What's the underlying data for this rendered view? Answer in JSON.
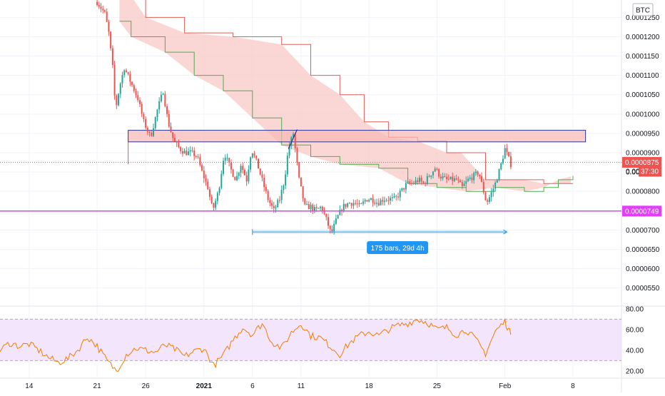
{
  "colors": {
    "up": "#26a69a",
    "down": "#ef5350",
    "cloud": "#f8c9c6",
    "cloud_line_a": "#e15e58",
    "cloud_line_b": "#4caf50",
    "support": "#e040fb",
    "price_line": "#ef5350",
    "rsi_line": "#f57c00",
    "rsi_band": "#f3e5fb",
    "zone_fill": "#f8b8b4",
    "zone_border": "#283593",
    "measure": "#2196f3",
    "grid": "#f0f3fa"
  },
  "currency_badge": "BTC",
  "chart_data": [
    {
      "type": "candlestick",
      "title": "",
      "ylim": [
        5.05e-05,
        0.0001295
      ],
      "y_ticks": [
        "0.0001250",
        "0.0001200",
        "0.0001150",
        "0.0001100",
        "0.0001050",
        "0.0001000",
        "0.0000950",
        "0.0000900",
        "0.0000850",
        "0.0000800",
        "0.0000750",
        "0.0000700",
        "0.0000650",
        "0.0000600",
        "0.0000550"
      ],
      "y_tick_values": [
        0.000125,
        0.00012,
        0.000115,
        0.00011,
        0.000105,
        0.0001,
        9.5e-05,
        9e-05,
        8.5e-05,
        8e-05,
        7.5e-05,
        7e-05,
        6.5e-05,
        6e-05,
        5.5e-05
      ],
      "x_ticks": [
        {
          "label": "14",
          "day": 14
        },
        {
          "label": "21",
          "day": 21
        },
        {
          "label": "26",
          "day": 26
        },
        {
          "label": "2021",
          "day": 32
        },
        {
          "label": "6",
          "day": 37
        },
        {
          "label": "11",
          "day": 42
        },
        {
          "label": "18",
          "day": 49
        },
        {
          "label": "25",
          "day": 56
        },
        {
          "label": "Feb",
          "day": 63
        },
        {
          "label": "8",
          "day": 70
        }
      ],
      "x_range_days": [
        11.0,
        75.0
      ],
      "price_path": [
        [
          21.0,
          0.000129
        ],
        [
          21.8,
          0.000126
        ],
        [
          22.2,
          0.000121
        ],
        [
          22.6,
          0.000112
        ],
        [
          22.9,
          0.000101
        ],
        [
          23.3,
          0.000107
        ],
        [
          23.8,
          0.000112
        ],
        [
          24.5,
          0.000108
        ],
        [
          25.2,
          0.000104
        ],
        [
          25.8,
          9.8e-05
        ],
        [
          26.5,
          9.4e-05
        ],
        [
          27.2,
          0.000101
        ],
        [
          27.8,
          0.000106
        ],
        [
          28.3,
          9.8e-05
        ],
        [
          28.9,
          9.3e-05
        ],
        [
          29.5,
          9.1e-05
        ],
        [
          30.1,
          9e-05
        ],
        [
          30.7,
          9e-05
        ],
        [
          31.3,
          8.9e-05
        ],
        [
          31.8,
          8.5e-05
        ],
        [
          32.4,
          8.1e-05
        ],
        [
          32.9,
          7.5e-05
        ],
        [
          33.5,
          8e-05
        ],
        [
          34.1,
          9e-05
        ],
        [
          34.7,
          8.6e-05
        ],
        [
          35.3,
          8.3e-05
        ],
        [
          35.8,
          8.7e-05
        ],
        [
          36.4,
          8.3e-05
        ],
        [
          36.9,
          9.1e-05
        ],
        [
          37.5,
          8.7e-05
        ],
        [
          38.1,
          8.2e-05
        ],
        [
          38.6,
          7.8e-05
        ],
        [
          39.2,
          7.5e-05
        ],
        [
          39.8,
          7.8e-05
        ],
        [
          40.3,
          8.3e-05
        ],
        [
          40.7,
          9.1e-05
        ],
        [
          41.2,
          9.5e-05
        ],
        [
          41.8,
          8.3e-05
        ],
        [
          42.4,
          7.6e-05
        ],
        [
          43.0,
          7.6e-05
        ],
        [
          43.5,
          7.5e-05
        ],
        [
          44.1,
          7.6e-05
        ],
        [
          44.7,
          7.2e-05
        ],
        [
          45.1,
          6.9e-05
        ],
        [
          45.7,
          7.3e-05
        ],
        [
          46.3,
          7.6e-05
        ],
        [
          46.9,
          7.7e-05
        ],
        [
          47.5,
          7.7e-05
        ],
        [
          48.1,
          7.6e-05
        ],
        [
          48.7,
          7.8e-05
        ],
        [
          49.3,
          7.8e-05
        ],
        [
          49.9,
          7.7e-05
        ],
        [
          50.5,
          7.8e-05
        ],
        [
          51.1,
          7.8e-05
        ],
        [
          51.7,
          7.8e-05
        ],
        [
          52.3,
          8e-05
        ],
        [
          52.9,
          8.2e-05
        ],
        [
          53.5,
          8.2e-05
        ],
        [
          54.1,
          8.3e-05
        ],
        [
          54.6,
          8.2e-05
        ],
        [
          55.2,
          8.4e-05
        ],
        [
          55.8,
          8.6e-05
        ],
        [
          56.3,
          8.4e-05
        ],
        [
          56.9,
          8.3e-05
        ],
        [
          57.5,
          8.3e-05
        ],
        [
          58.0,
          8.3e-05
        ],
        [
          58.6,
          8.1e-05
        ],
        [
          59.2,
          8.3e-05
        ],
        [
          59.8,
          8.4e-05
        ],
        [
          60.3,
          8.5e-05
        ],
        [
          60.7,
          8.1e-05
        ],
        [
          61.1,
          7.7e-05
        ],
        [
          61.5,
          7.9e-05
        ],
        [
          62.0,
          8.2e-05
        ],
        [
          62.5,
          8.6e-05
        ],
        [
          63.0,
          9.1e-05
        ],
        [
          63.6,
          8.7e-05
        ]
      ],
      "ichimoku_span_a": [
        [
          23.3,
          0.000135
        ],
        [
          26.0,
          0.000125
        ],
        [
          30.0,
          0.000121
        ],
        [
          35.0,
          0.00012
        ],
        [
          40.0,
          0.000118
        ],
        [
          43.0,
          0.00011
        ],
        [
          46.0,
          0.000105
        ],
        [
          48.5,
          9.8e-05
        ],
        [
          51.0,
          9.4e-05
        ],
        [
          54.0,
          9.3e-05
        ],
        [
          57.0,
          9e-05
        ],
        [
          58.5,
          9e-05
        ],
        [
          61.0,
          8.3e-05
        ],
        [
          65.0,
          8.3e-05
        ],
        [
          67.0,
          8.2e-05
        ],
        [
          70.0,
          8.2e-05
        ]
      ],
      "ichimoku_span_b": [
        [
          23.3,
          0.000124
        ],
        [
          24.5,
          0.00012
        ],
        [
          28.0,
          0.000116
        ],
        [
          31.0,
          0.00011
        ],
        [
          34.0,
          0.000106
        ],
        [
          37.0,
          9.9e-05
        ],
        [
          40.0,
          9.2e-05
        ],
        [
          43.0,
          8.9e-05
        ],
        [
          46.0,
          8.7e-05
        ],
        [
          50.0,
          8.6e-05
        ],
        [
          53.0,
          8.2e-05
        ],
        [
          56.0,
          8.1e-05
        ],
        [
          59.0,
          8e-05
        ],
        [
          62.0,
          8.1e-05
        ],
        [
          65.0,
          8e-05
        ],
        [
          67.0,
          8.1e-05
        ],
        [
          68.5,
          8.3e-05
        ],
        [
          70.0,
          8.4e-05
        ]
      ],
      "resistance_zone": {
        "from_day": 24.2,
        "to_day": 71.3,
        "top": 9.58e-05,
        "bottom": 9.28e-05
      },
      "support_level": {
        "value": 7.49e-05,
        "label": "0.0000749"
      },
      "last_price": {
        "value": 8.75e-05,
        "label": "0.0000875"
      },
      "countdown": {
        "value": 8.52e-05,
        "prefix": "0.000",
        "label": "37:30"
      },
      "measure": {
        "from_day": 37.0,
        "to_day": 63.2,
        "value": 6.95e-05,
        "label": "175 bars, 29d 4h"
      },
      "trend_segment": [
        [
          40.7,
          9.1e-05
        ],
        [
          41.6,
          9.6e-05
        ]
      ]
    },
    {
      "type": "line",
      "title": "",
      "ylim": [
        13.0,
        82.0
      ],
      "y_ticks": [
        "80.00",
        "60.00",
        "40.00",
        "20.00"
      ],
      "y_tick_values": [
        80,
        60,
        40,
        20
      ],
      "band": [
        30.0,
        70.0
      ],
      "x": [
        11.0,
        12.0,
        13.0,
        14.0,
        15.0,
        16.0,
        17.0,
        18.0,
        19.0,
        20.0,
        21.0,
        22.0,
        23.0,
        24.0,
        25.0,
        26.0,
        27.0,
        28.0,
        29.0,
        30.0,
        31.0,
        32.0,
        33.0,
        34.0,
        35.0,
        36.0,
        37.0,
        38.0,
        39.0,
        40.0,
        41.0,
        42.0,
        43.0,
        44.0,
        45.0,
        46.0,
        47.0,
        48.0,
        49.0,
        50.0,
        51.0,
        52.0,
        53.0,
        54.0,
        55.0,
        56.0,
        57.0,
        58.0,
        59.0,
        60.0,
        61.0,
        62.0,
        63.0,
        63.6
      ],
      "values": [
        40,
        47,
        44,
        46,
        40,
        33,
        28,
        32,
        40,
        53,
        44,
        30,
        20,
        36,
        42,
        40,
        38,
        45,
        41,
        34,
        39,
        42,
        25,
        35,
        50,
        62,
        55,
        66,
        48,
        42,
        57,
        66,
        54,
        52,
        44,
        36,
        47,
        54,
        58,
        54,
        60,
        64,
        66,
        70,
        67,
        60,
        62,
        55,
        60,
        50,
        37,
        58,
        68,
        55
      ]
    }
  ]
}
